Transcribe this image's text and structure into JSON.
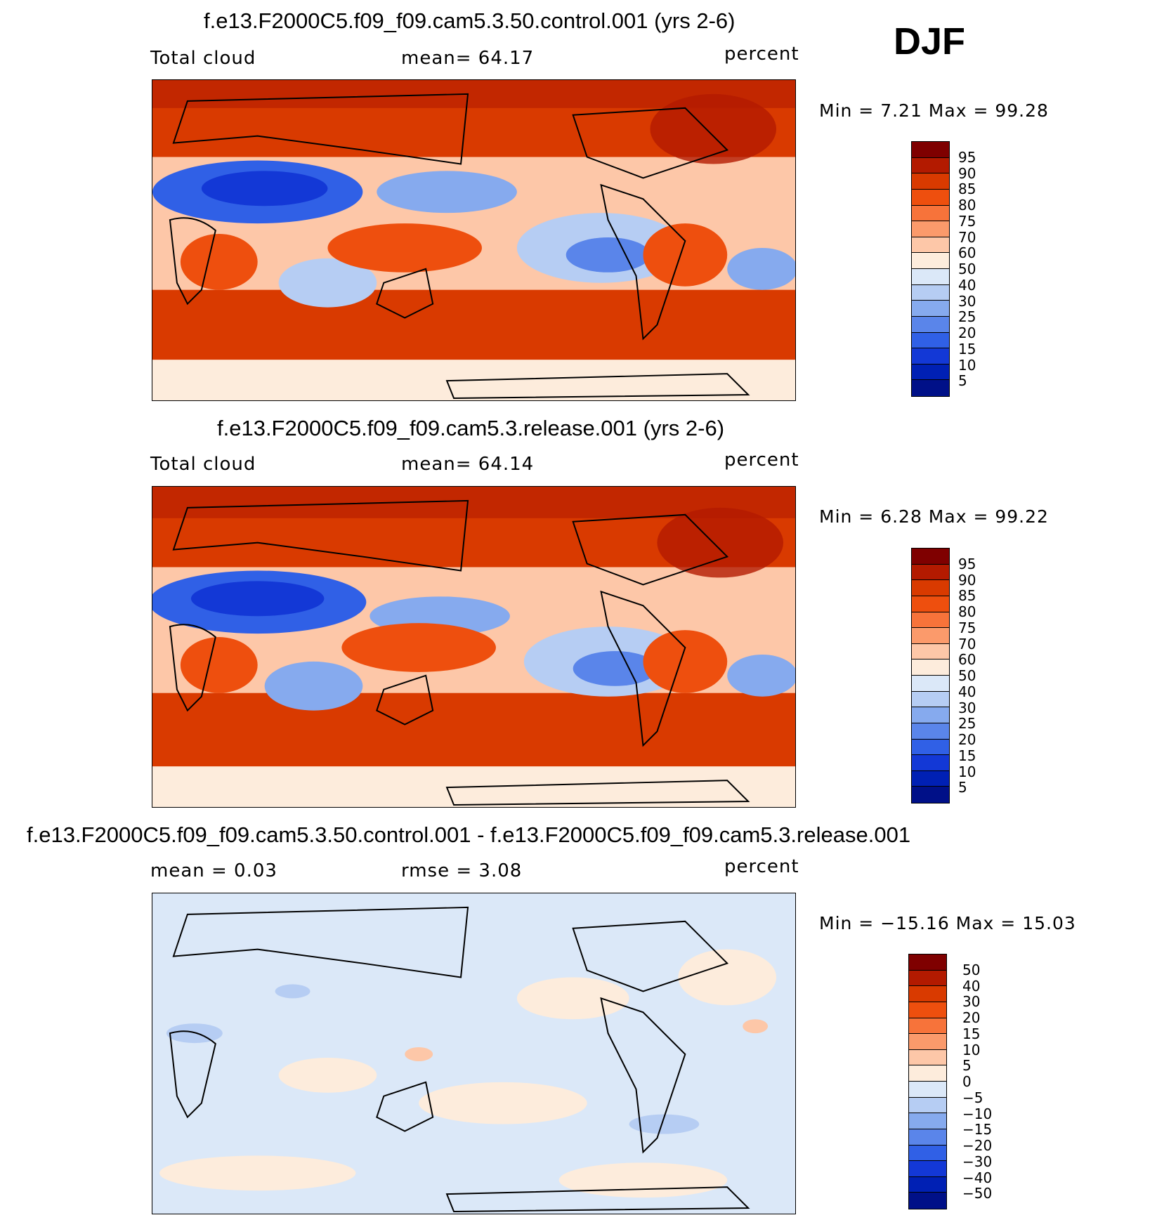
{
  "season": "DJF",
  "panels": [
    {
      "title": "f.e13.F2000C5.f09_f09.cam5.3.50.control.001 (yrs 2-6)",
      "left": "Total cloud",
      "center": "mean=   64.17",
      "right": "percent",
      "minmax": "Min =    7.21  Max =   99.28",
      "colorbar": {
        "labels": [
          "95",
          "90",
          "85",
          "80",
          "75",
          "70",
          "60",
          "50",
          "40",
          "30",
          "25",
          "20",
          "15",
          "10",
          "5"
        ],
        "colors": [
          "#7f0000",
          "#b31a00",
          "#d93a00",
          "#ee4f0e",
          "#f7733a",
          "#fb9a6b",
          "#fdc7a8",
          "#fdecdc",
          "#dbe8f8",
          "#b6cdf3",
          "#86aaee",
          "#5a85ea",
          "#3060e6",
          "#1338d6",
          "#0020b4",
          "#001088"
        ]
      }
    },
    {
      "title": "f.e13.F2000C5.f09_f09.cam5.3.release.001 (yrs 2-6)",
      "left": "Total cloud",
      "center": "mean=   64.14",
      "right": "percent",
      "minmax": "Min =    6.28  Max =   99.22",
      "colorbar": {
        "labels": [
          "95",
          "90",
          "85",
          "80",
          "75",
          "70",
          "60",
          "50",
          "40",
          "30",
          "25",
          "20",
          "15",
          "10",
          "5"
        ],
        "colors": [
          "#7f0000",
          "#b31a00",
          "#d93a00",
          "#ee4f0e",
          "#f7733a",
          "#fb9a6b",
          "#fdc7a8",
          "#fdecdc",
          "#dbe8f8",
          "#b6cdf3",
          "#86aaee",
          "#5a85ea",
          "#3060e6",
          "#1338d6",
          "#0020b4",
          "#001088"
        ]
      }
    },
    {
      "title": "f.e13.F2000C5.f09_f09.cam5.3.50.control.001 - f.e13.F2000C5.f09_f09.cam5.3.release.001",
      "left": "mean =     0.03",
      "center": "rmse =     3.08",
      "right": "percent",
      "minmax": "Min = −15.16  Max =   15.03",
      "colorbar": {
        "labels": [
          "50",
          "40",
          "30",
          "20",
          "15",
          "10",
          "5",
          "0",
          "−5",
          "−10",
          "−15",
          "−20",
          "−30",
          "−40",
          "−50"
        ],
        "colors": [
          "#7f0000",
          "#b31a00",
          "#d93a00",
          "#ee4f0e",
          "#f7733a",
          "#fb9a6b",
          "#fdc7a8",
          "#fdecdc",
          "#dbe8f8",
          "#b6cdf3",
          "#86aaee",
          "#5a85ea",
          "#3060e6",
          "#1338d6",
          "#0020b4",
          "#001088"
        ]
      }
    }
  ],
  "field_colors": {
    "deep_red": "#b31a00",
    "red": "#d93a00",
    "orange": "#f7733a",
    "salmon": "#fb9a6b",
    "peach": "#fdc7a8",
    "cream": "#fdecdc",
    "pale_blue": "#dbe8f8",
    "light_blue": "#b6cdf3",
    "mid_blue": "#86aaee",
    "blue": "#3060e6",
    "dark_blue": "#1338d6"
  }
}
